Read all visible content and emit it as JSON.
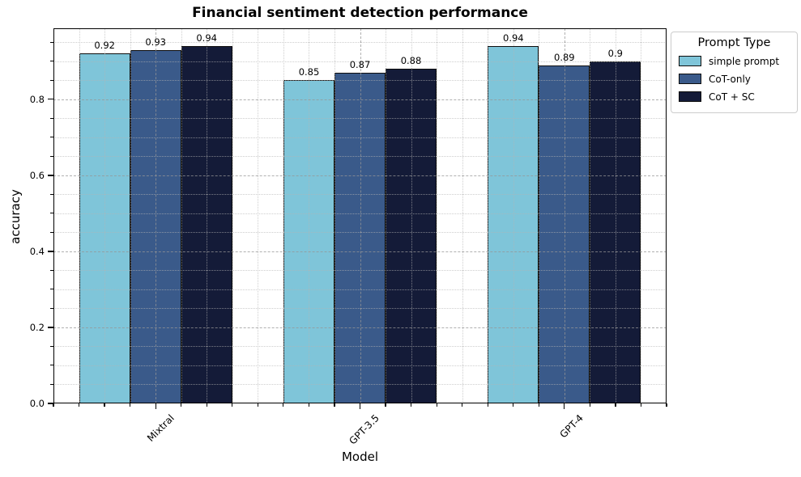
{
  "title": "Financial sentiment detection performance",
  "xlabel": "Model",
  "ylabel": "accuracy",
  "legend": {
    "title": "Prompt Type",
    "entries": [
      {
        "label": "simple prompt",
        "color": "#7fc5d9"
      },
      {
        "label": "CoT-only",
        "color": "#3a5a8a"
      },
      {
        "label": "CoT + SC",
        "color": "#141b38"
      }
    ]
  },
  "chart_data": {
    "type": "bar",
    "title": "Financial sentiment detection performance",
    "xlabel": "Model",
    "ylabel": "accuracy",
    "categories": [
      "Mixtral",
      "GPT-3.5",
      "GPT-4"
    ],
    "series": [
      {
        "name": "simple prompt",
        "color": "#7fc5d9",
        "values": [
          0.92,
          0.85,
          0.94
        ],
        "labels": [
          "0.92",
          "0.85",
          "0.94"
        ]
      },
      {
        "name": "CoT-only",
        "color": "#3a5a8a",
        "values": [
          0.93,
          0.87,
          0.89
        ],
        "labels": [
          "0.93",
          "0.87",
          "0.89"
        ]
      },
      {
        "name": "CoT + SC",
        "color": "#141b38",
        "values": [
          0.94,
          0.88,
          0.9
        ],
        "labels": [
          "0.94",
          "0.88",
          "0.9"
        ]
      }
    ],
    "ylim": [
      0,
      0.987
    ],
    "yticks": [
      0.0,
      0.2,
      0.4,
      0.6,
      0.8
    ],
    "ytick_labels": [
      "0.0",
      "0.2",
      "0.4",
      "0.6",
      "0.8"
    ],
    "grid": "both axes, dashed major and dotted minor, drawn above bars",
    "legend_position": "outside top-right",
    "bar_edge_color": "#0d0d0d"
  }
}
